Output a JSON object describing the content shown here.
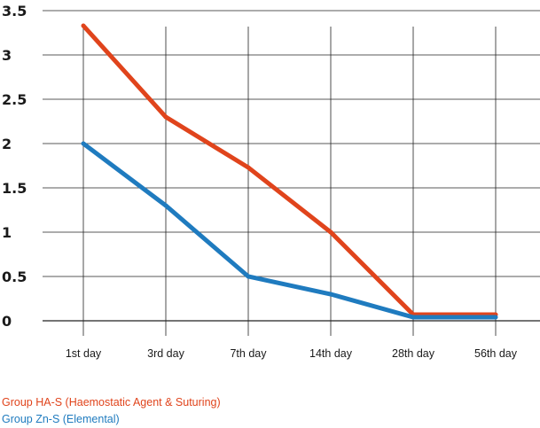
{
  "chart_data": {
    "type": "line",
    "categories": [
      "1st day",
      "3rd day",
      "7th day",
      "14th day",
      "28th day",
      "56th day"
    ],
    "series": [
      {
        "name": "Group HA-S (Haemostatic Agent & Suturing)",
        "color": "#e0441c",
        "values": [
          3.33,
          2.3,
          1.73,
          1.0,
          0.07,
          0.07
        ]
      },
      {
        "name": "Group Zn-S (Elemental)",
        "color": "#1f7bbf",
        "values": [
          2.0,
          1.3,
          0.5,
          0.3,
          0.04,
          0.04
        ]
      }
    ],
    "yticks": [
      "0",
      "0.5",
      "1",
      "1.5",
      "2",
      "2.5",
      "3",
      "3.5"
    ],
    "ylim": [
      0,
      3.5
    ],
    "grid": true,
    "legend_position": "bottom-left",
    "title": "",
    "xlabel": "",
    "ylabel": ""
  }
}
